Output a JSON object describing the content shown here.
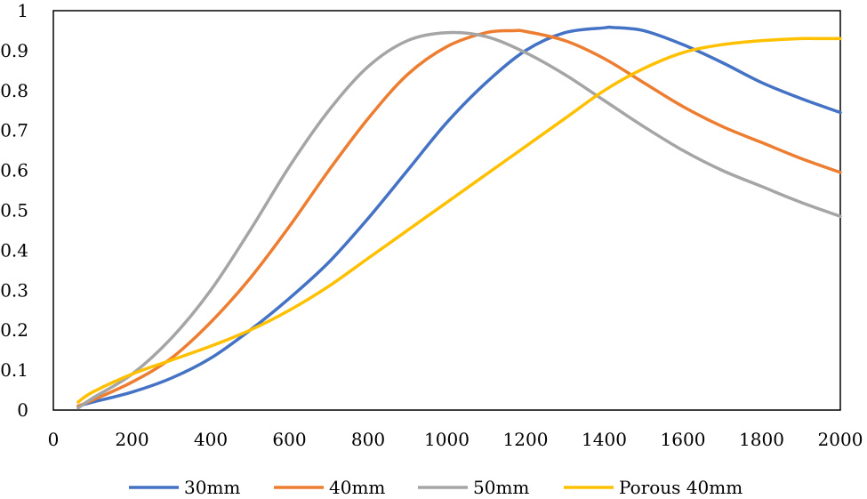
{
  "chart_data": {
    "type": "line",
    "title": "",
    "xlabel": "",
    "ylabel": "",
    "xlim": [
      0,
      2000
    ],
    "ylim": [
      0,
      1
    ],
    "x_ticks": [
      0,
      200,
      400,
      600,
      800,
      1000,
      1200,
      1400,
      1600,
      1800,
      2000
    ],
    "y_ticks": [
      0,
      0.1,
      0.2,
      0.3,
      0.4,
      0.5,
      0.6,
      0.7,
      0.8,
      0.9,
      1
    ],
    "grid": false,
    "legend_position": "bottom",
    "series": [
      {
        "name": "30mm",
        "color": "#4472C4",
        "x": [
          63,
          100,
          200,
          300,
          400,
          500,
          600,
          700,
          800,
          900,
          1000,
          1100,
          1200,
          1300,
          1400,
          1420,
          1500,
          1600,
          1700,
          1800,
          1900,
          2000
        ],
        "y": [
          0.01,
          0.02,
          0.045,
          0.08,
          0.13,
          0.2,
          0.28,
          0.37,
          0.48,
          0.6,
          0.72,
          0.82,
          0.9,
          0.945,
          0.957,
          0.958,
          0.95,
          0.915,
          0.87,
          0.82,
          0.78,
          0.745
        ]
      },
      {
        "name": "40mm",
        "color": "#ED7D31",
        "x": [
          63,
          100,
          200,
          300,
          400,
          500,
          600,
          700,
          800,
          900,
          1000,
          1100,
          1170,
          1200,
          1300,
          1400,
          1500,
          1600,
          1700,
          1800,
          1900,
          2000
        ],
        "y": [
          0.01,
          0.025,
          0.07,
          0.13,
          0.22,
          0.33,
          0.46,
          0.6,
          0.73,
          0.84,
          0.91,
          0.945,
          0.95,
          0.948,
          0.925,
          0.88,
          0.82,
          0.76,
          0.71,
          0.67,
          0.63,
          0.595
        ]
      },
      {
        "name": "50mm",
        "color": "#A5A5A5",
        "x": [
          63,
          100,
          200,
          300,
          400,
          500,
          600,
          700,
          800,
          900,
          1000,
          1100,
          1200,
          1300,
          1400,
          1500,
          1600,
          1700,
          1800,
          1900,
          2000
        ],
        "y": [
          0.005,
          0.03,
          0.09,
          0.18,
          0.3,
          0.45,
          0.61,
          0.75,
          0.86,
          0.925,
          0.945,
          0.935,
          0.895,
          0.84,
          0.775,
          0.71,
          0.65,
          0.6,
          0.56,
          0.52,
          0.485
        ]
      },
      {
        "name": "Porous 40mm",
        "color": "#FFC000",
        "x": [
          63,
          100,
          200,
          300,
          400,
          500,
          600,
          700,
          800,
          900,
          1000,
          1100,
          1200,
          1300,
          1400,
          1500,
          1600,
          1700,
          1800,
          1900,
          1950,
          2000
        ],
        "y": [
          0.02,
          0.045,
          0.09,
          0.125,
          0.16,
          0.2,
          0.25,
          0.31,
          0.38,
          0.45,
          0.52,
          0.59,
          0.66,
          0.73,
          0.8,
          0.855,
          0.895,
          0.915,
          0.925,
          0.93,
          0.93,
          0.93
        ]
      }
    ]
  }
}
